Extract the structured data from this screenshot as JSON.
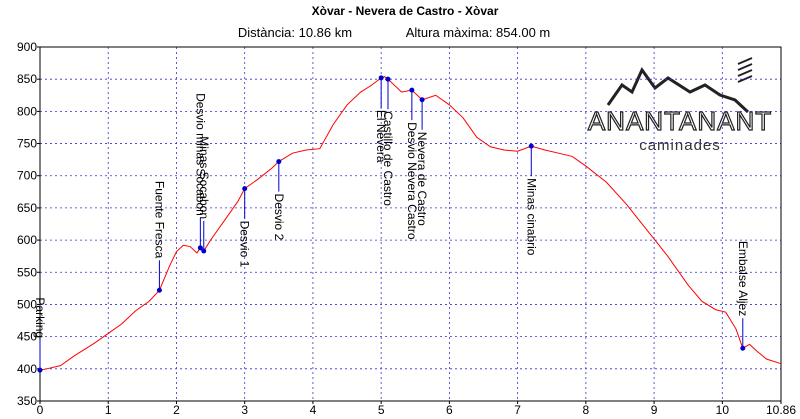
{
  "chart_data": {
    "type": "line",
    "title": "Xòvar - Nevera de Castro - Xòvar",
    "subtitle": [
      "Distància: 10.86 km",
      "Altura màxima: 854.00 m"
    ],
    "logo": {
      "name": "ANANTANANT",
      "tagline": "caminades"
    },
    "x": [
      0,
      0.1,
      0.3,
      0.5,
      0.8,
      1.0,
      1.2,
      1.4,
      1.6,
      1.75,
      1.9,
      2.0,
      2.1,
      2.2,
      2.3,
      2.35,
      2.4,
      2.5,
      2.7,
      2.9,
      3.0,
      3.2,
      3.4,
      3.5,
      3.7,
      3.9,
      4.1,
      4.3,
      4.5,
      4.7,
      4.85,
      5.0,
      5.05,
      5.1,
      5.3,
      5.45,
      5.6,
      5.8,
      6.0,
      6.2,
      6.4,
      6.6,
      6.8,
      7.0,
      7.2,
      7.4,
      7.6,
      7.8,
      8.0,
      8.3,
      8.6,
      8.9,
      9.2,
      9.5,
      9.7,
      9.9,
      10.05,
      10.2,
      10.3,
      10.4,
      10.5,
      10.65,
      10.86
    ],
    "series": [
      {
        "name": "Altura",
        "color": "#ff0000",
        "values": [
          398,
          400,
          405,
          420,
          440,
          455,
          470,
          490,
          505,
          522,
          560,
          582,
          592,
          590,
          580,
          588,
          583,
          600,
          630,
          660,
          680,
          695,
          712,
          722,
          735,
          740,
          742,
          780,
          810,
          830,
          840,
          852,
          854,
          850,
          830,
          833,
          818,
          825,
          810,
          790,
          760,
          745,
          740,
          738,
          746,
          740,
          735,
          730,
          715,
          690,
          655,
          615,
          575,
          530,
          505,
          492,
          488,
          462,
          432,
          438,
          428,
          415,
          408
        ]
      }
    ],
    "annotations": [
      {
        "label": "Parking",
        "x": 0,
        "y": 398
      },
      {
        "label": "Fuente Fresca",
        "x": 1.75,
        "y": 522
      },
      {
        "label": "Desvio minas Socabon",
        "x": 2.35,
        "y": 588
      },
      {
        "label": "Minas Socabon",
        "x": 2.4,
        "y": 583
      },
      {
        "label": "Desvio 1",
        "x": 3.0,
        "y": 680
      },
      {
        "label": "Desvio 2",
        "x": 3.5,
        "y": 722
      },
      {
        "label": "El Nevera",
        "x": 5.0,
        "y": 852
      },
      {
        "label": "Castillo de Castro",
        "x": 5.1,
        "y": 850
      },
      {
        "label": "Desvio Nevera Castro",
        "x": 5.45,
        "y": 833
      },
      {
        "label": "Nevera de Castro",
        "x": 5.6,
        "y": 818
      },
      {
        "label": "Minas cinabrio",
        "x": 7.2,
        "y": 746
      },
      {
        "label": "Embalse Aljez",
        "x": 10.3,
        "y": 432
      }
    ],
    "marker_color": "#0000cc",
    "xlim": [
      0,
      10.86
    ],
    "xticks": [
      0,
      1,
      2,
      3,
      4,
      5,
      6,
      7,
      8,
      9,
      10,
      10.86
    ],
    "ylim": [
      350,
      900
    ],
    "yticks": [
      350,
      400,
      450,
      500,
      550,
      600,
      650,
      700,
      750,
      800,
      850,
      900
    ],
    "grid": true
  }
}
